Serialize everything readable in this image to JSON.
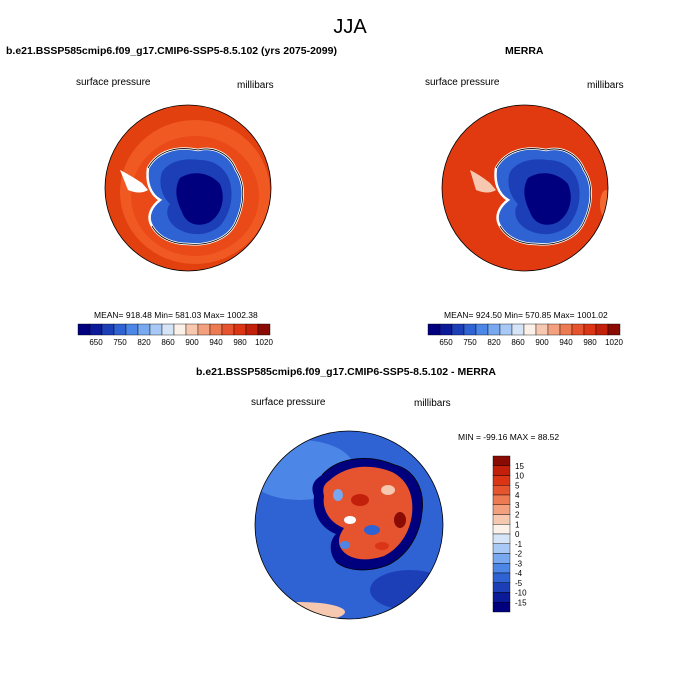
{
  "page_title": "JJA",
  "panels": [
    {
      "title": "b.e21.BSSP585cmip6.f09_g17.CMIP6-SSP5-8.5.102 (yrs 2075-2099)",
      "left_label": "surface pressure",
      "right_label": "millibars",
      "stats": "MEAN= 918.48  Min= 581.03  Max= 1002.38"
    },
    {
      "title": "MERRA",
      "left_label": "surface pressure",
      "right_label": "millibars",
      "stats": "MEAN= 924.50  Min= 570.85  Max= 1001.02"
    },
    {
      "title": "b.e21.BSSP585cmip6.f09_g17.CMIP6-SSP5-8.5.102 - MERRA",
      "left_label": "surface pressure",
      "right_label": "millibars",
      "stats": "MIN = -99.16 MAX =  88.52"
    }
  ],
  "colors": {
    "pressure_scale": [
      "#00007f",
      "#0b1a98",
      "#1c3fb8",
      "#2f62d2",
      "#4c86e6",
      "#78a8f0",
      "#a8c8f6",
      "#d6e4f7",
      "#fbf1e8",
      "#f7c8b0",
      "#f2a07e",
      "#ec7a52",
      "#e5542e",
      "#dc3515",
      "#c2200a",
      "#8a0b04"
    ],
    "diff_scale": [
      "#00007f",
      "#0b1a98",
      "#1c3fb8",
      "#2f62d2",
      "#4c86e6",
      "#78a8f0",
      "#a8c8f6",
      "#d6e4f7",
      "#fbf1e8",
      "#f7c8b0",
      "#f2a07e",
      "#ec7a52",
      "#e5542e",
      "#dc3515",
      "#c2200a",
      "#8a0b04"
    ]
  },
  "chart_data": [
    {
      "type": "heatmap",
      "title": "b.e21.BSSP585cmip6.f09_g17.CMIP6-SSP5-8.5.102 (yrs 2075-2099)",
      "variable": "surface pressure",
      "units": "millibars",
      "projection": "south polar stereographic",
      "mean": 918.48,
      "min": 581.03,
      "max": 1002.38,
      "colorbar_ticks": [
        "650",
        "750",
        "820",
        "860",
        "900",
        "940",
        "980",
        "1020"
      ]
    },
    {
      "type": "heatmap",
      "title": "MERRA",
      "variable": "surface pressure",
      "units": "millibars",
      "projection": "south polar stereographic",
      "mean": 924.5,
      "min": 570.85,
      "max": 1001.02,
      "colorbar_ticks": [
        "650",
        "750",
        "820",
        "860",
        "900",
        "940",
        "980",
        "1020"
      ]
    },
    {
      "type": "heatmap",
      "title": "b.e21.BSSP585cmip6.f09_g17.CMIP6-SSP5-8.5.102 - MERRA",
      "variable": "surface pressure",
      "units": "millibars",
      "projection": "south polar stereographic",
      "min": -99.16,
      "max": 88.52,
      "colorbar_ticks": [
        "15",
        "10",
        "5",
        "4",
        "3",
        "2",
        "1",
        "0",
        "-1",
        "-2",
        "-3",
        "-4",
        "-5",
        "-10",
        "-15"
      ]
    }
  ]
}
